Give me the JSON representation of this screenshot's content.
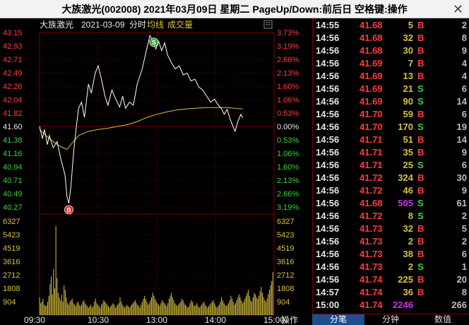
{
  "window": {
    "title": "大族激光(002008) 2021年03月09日 星期二 PageUp/Down:前后日 空格键:操作",
    "close_label": "✕"
  },
  "chart_header": {
    "stock_name": "大族激光",
    "date": "2021-03-09",
    "mode": "分时",
    "avg_label": "均线",
    "vol_label": "成交量"
  },
  "colors": {
    "up": "#ff3b3b",
    "down": "#3ecf3e",
    "flat": "#e6e6e6",
    "price_line": "#ffffff",
    "avg_line": "#d8c23a",
    "volume": "#d8c23a",
    "grid": "#7a0000",
    "buy": "#ff3b3b",
    "sell": "#3ecf3e",
    "big_vol": "#c838e8"
  },
  "chart_data": {
    "type": "line",
    "prev_close": 41.6,
    "price_ticks": [
      "43.15",
      "42.93",
      "42.71",
      "42.49",
      "42.26",
      "42.04",
      "41.82",
      "41.60",
      "41.38",
      "41.16",
      "40.94",
      "40.71",
      "40.49",
      "40.27"
    ],
    "pct_ticks": [
      "3.73%",
      "3.19%",
      "2.66%",
      "2.13%",
      "1.60%",
      "1.06%",
      "0.53%",
      "0.00%",
      "0.53%",
      "1.06%",
      "1.60%",
      "2.13%",
      "2.66%",
      "3.19%"
    ],
    "vol_ticks_left": [
      "6327",
      "5423",
      "4519",
      "3616",
      "2712",
      "1808",
      "904"
    ],
    "vol_ticks_right": [
      "6327",
      "5423",
      "4519",
      "3616",
      "2712",
      "1808",
      "904"
    ],
    "time_labels": [
      "09:30",
      "10:30",
      "13:00",
      "14:00",
      "15:00"
    ],
    "price_points": [
      [
        0,
        41.6
      ],
      [
        3,
        41.4
      ],
      [
        5,
        41.55
      ],
      [
        8,
        41.3
      ],
      [
        10,
        41.45
      ],
      [
        14,
        41.25
      ],
      [
        18,
        41.35
      ],
      [
        22,
        41.05
      ],
      [
        26,
        40.8
      ],
      [
        28,
        40.45
      ],
      [
        30,
        40.33
      ],
      [
        32,
        40.6
      ],
      [
        35,
        41.2
      ],
      [
        38,
        41.65
      ],
      [
        40,
        41.9
      ],
      [
        43,
        42.0
      ],
      [
        46,
        41.75
      ],
      [
        50,
        42.3
      ],
      [
        53,
        42.15
      ],
      [
        57,
        42.48
      ],
      [
        60,
        42.6
      ],
      [
        63,
        42.4
      ],
      [
        67,
        42.1
      ],
      [
        70,
        41.95
      ],
      [
        74,
        42.2
      ],
      [
        78,
        42.05
      ],
      [
        82,
        41.92
      ],
      [
        85,
        42.1
      ],
      [
        88,
        41.9
      ],
      [
        92,
        42.0
      ],
      [
        96,
        41.95
      ],
      [
        100,
        42.3
      ],
      [
        105,
        42.55
      ],
      [
        110,
        42.9
      ],
      [
        113,
        43.1
      ],
      [
        116,
        43.0
      ],
      [
        119,
        42.88
      ],
      [
        122,
        43.0
      ],
      [
        125,
        42.85
      ],
      [
        128,
        42.98
      ],
      [
        131,
        42.78
      ],
      [
        135,
        42.65
      ],
      [
        139,
        42.55
      ],
      [
        143,
        42.6
      ],
      [
        147,
        42.45
      ],
      [
        151,
        42.48
      ],
      [
        155,
        42.35
      ],
      [
        159,
        42.38
      ],
      [
        163,
        42.25
      ],
      [
        167,
        42.2
      ],
      [
        171,
        42.1
      ],
      [
        175,
        42.0
      ],
      [
        179,
        42.05
      ],
      [
        183,
        41.95
      ],
      [
        186,
        41.9
      ],
      [
        189,
        41.8
      ],
      [
        192,
        41.88
      ],
      [
        195,
        41.72
      ],
      [
        198,
        41.6
      ],
      [
        200,
        41.52
      ],
      [
        203,
        41.68
      ],
      [
        206,
        41.8
      ],
      [
        208,
        41.74
      ]
    ],
    "avg_points": [
      [
        0,
        41.55
      ],
      [
        10,
        41.4
      ],
      [
        20,
        41.28
      ],
      [
        28,
        41.22
      ],
      [
        32,
        41.3
      ],
      [
        40,
        41.45
      ],
      [
        50,
        41.52
      ],
      [
        60,
        41.55
      ],
      [
        70,
        41.57
      ],
      [
        80,
        41.6
      ],
      [
        90,
        41.63
      ],
      [
        100,
        41.68
      ],
      [
        110,
        41.75
      ],
      [
        120,
        41.8
      ],
      [
        130,
        41.84
      ],
      [
        140,
        41.87
      ],
      [
        150,
        41.89
      ],
      [
        160,
        41.9
      ],
      [
        170,
        41.91
      ],
      [
        180,
        41.91
      ],
      [
        190,
        41.91
      ],
      [
        200,
        41.9
      ],
      [
        208,
        41.89
      ]
    ],
    "volumes": [
      1200,
      800,
      900,
      1100,
      700,
      600,
      650,
      900,
      1300,
      2100,
      2600,
      1400,
      3100,
      1800,
      6000,
      2500,
      1500,
      1200,
      1000,
      1400,
      900,
      2000,
      1700,
      1200,
      800,
      700,
      900,
      1000,
      1100,
      800,
      700,
      600,
      800,
      900,
      700,
      600,
      700,
      900,
      1000,
      800,
      700,
      600,
      500,
      600,
      700,
      500,
      600,
      900,
      1100,
      800,
      700,
      600,
      500,
      700,
      800,
      1000,
      900,
      800,
      700,
      600,
      500,
      600,
      700,
      800,
      700,
      500,
      600,
      700,
      800,
      1200,
      900,
      700,
      600,
      500,
      600,
      700,
      600,
      500,
      600,
      700,
      800,
      900,
      1000,
      800,
      700,
      600,
      500,
      700,
      900,
      1100,
      1300,
      1100,
      900,
      700,
      800,
      1000,
      1200,
      1500,
      1300,
      1100,
      900,
      800,
      700,
      600,
      800,
      1000,
      900,
      800,
      700,
      600,
      800,
      1100,
      1300,
      1500,
      1200,
      1000,
      800,
      700,
      600,
      700,
      800,
      900,
      1100,
      1000,
      800,
      700,
      600,
      500,
      600,
      800,
      1000,
      900,
      700,
      600,
      700,
      800,
      600,
      500,
      600,
      700,
      800,
      900,
      700,
      600,
      500,
      600,
      700,
      800,
      900,
      1000,
      800,
      600,
      500,
      600,
      700,
      900,
      1200,
      1000,
      800,
      700,
      600,
      700,
      800,
      1000,
      1300,
      1100,
      900,
      700,
      800,
      1000,
      1200,
      1400,
      1200,
      1000,
      800,
      900,
      1100,
      1300,
      1500,
      1700,
      1300,
      1000,
      900,
      1200,
      1500,
      1400,
      1200,
      1100,
      1300,
      1600,
      1900,
      1500,
      1200,
      1000,
      900,
      1100,
      1400,
      1700,
      2000,
      2300,
      2900
    ],
    "markers": [
      {
        "label": "B",
        "t": 30,
        "price": 40.33,
        "color": "#e02020"
      },
      {
        "label": "S",
        "t": 117,
        "price": 42.92,
        "color": "#2fa82f"
      }
    ]
  },
  "ticks": [
    {
      "time": "14:55",
      "price": "41.68",
      "vol": "5",
      "bs": "B",
      "count": "2"
    },
    {
      "time": "14:56",
      "price": "41.68",
      "vol": "32",
      "bs": "B",
      "count": "8"
    },
    {
      "time": "14:56",
      "price": "41.68",
      "vol": "30",
      "bs": "B",
      "count": "9"
    },
    {
      "time": "14:56",
      "price": "41.69",
      "vol": "7",
      "bs": "B",
      "count": "4"
    },
    {
      "time": "14:56",
      "price": "41.69",
      "vol": "13",
      "bs": "B",
      "count": "4"
    },
    {
      "time": "14:56",
      "price": "41.69",
      "vol": "21",
      "bs": "S",
      "count": "6"
    },
    {
      "time": "14:56",
      "price": "41.69",
      "vol": "90",
      "bs": "S",
      "count": "14"
    },
    {
      "time": "14:56",
      "price": "41.70",
      "vol": "59",
      "bs": "B",
      "count": "6"
    },
    {
      "time": "14:56",
      "price": "41.70",
      "vol": "170",
      "bs": "S",
      "count": "19"
    },
    {
      "time": "14:56",
      "price": "41.71",
      "vol": "51",
      "bs": "B",
      "count": "14"
    },
    {
      "time": "14:56",
      "price": "41.71",
      "vol": "35",
      "bs": "B",
      "count": "9"
    },
    {
      "time": "14:56",
      "price": "41.71",
      "vol": "25",
      "bs": "S",
      "count": "6"
    },
    {
      "time": "14:56",
      "price": "41.72",
      "vol": "324",
      "bs": "B",
      "count": "30"
    },
    {
      "time": "14:56",
      "price": "41.72",
      "vol": "46",
      "bs": "B",
      "count": "9"
    },
    {
      "time": "14:56",
      "price": "41.68",
      "vol": "505",
      "bs": "S",
      "count": "61"
    },
    {
      "time": "14:56",
      "price": "41.72",
      "vol": "8",
      "bs": "S",
      "count": "2"
    },
    {
      "time": "14:56",
      "price": "41.73",
      "vol": "32",
      "bs": "B",
      "count": "5"
    },
    {
      "time": "14:56",
      "price": "41.73",
      "vol": "2",
      "bs": "B",
      "count": "2"
    },
    {
      "time": "14:56",
      "price": "41.73",
      "vol": "38",
      "bs": "B",
      "count": "6"
    },
    {
      "time": "14:56",
      "price": "41.73",
      "vol": "2",
      "bs": "S",
      "count": "1"
    },
    {
      "time": "14:56",
      "price": "41.74",
      "vol": "225",
      "bs": "B",
      "count": "20"
    },
    {
      "time": "14:57",
      "price": "41.74",
      "vol": "36",
      "bs": "B",
      "count": "8"
    },
    {
      "time": "15:00",
      "price": "41.74",
      "vol": "2246",
      "bs": "",
      "count": "266"
    }
  ],
  "operate_label": "操作",
  "tabs": [
    "分笔",
    "分钟",
    "数值"
  ]
}
